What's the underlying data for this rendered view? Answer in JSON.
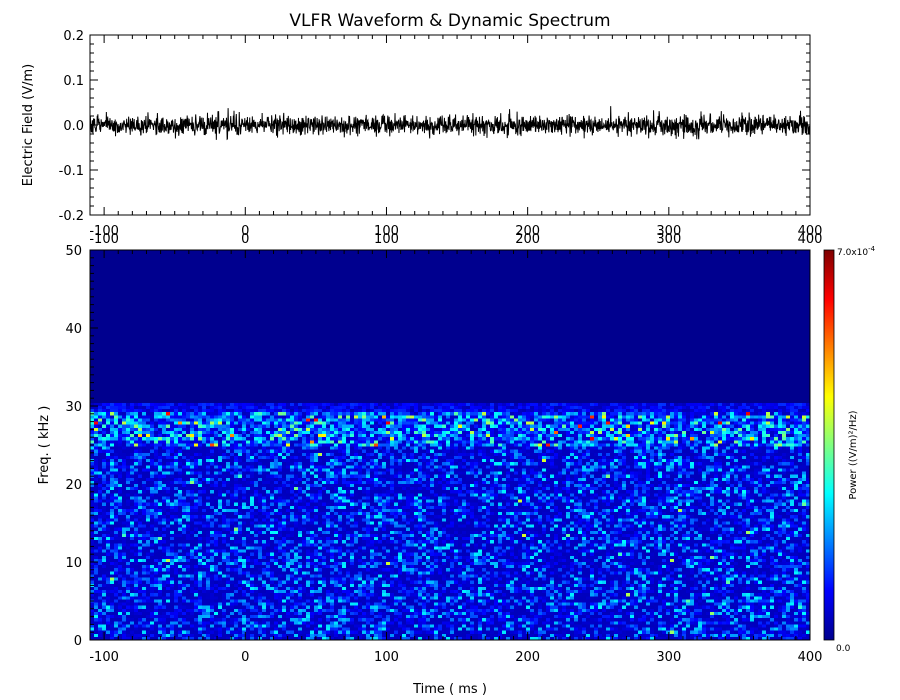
{
  "title": "VLFR Waveform & Dynamic Spectrum",
  "chart_data": [
    {
      "type": "line",
      "panel": "waveform",
      "ylabel": "Electric Field  (V/m)",
      "xlim": [
        -110,
        400
      ],
      "ylim": [
        -0.2,
        0.2
      ],
      "x_ticks": [
        -100,
        0,
        100,
        200,
        300,
        400
      ],
      "y_ticks": [
        -0.2,
        -0.1,
        0.0,
        0.1,
        0.2
      ],
      "y_tick_labels": [
        "-0.2",
        "-0.1",
        "0.0",
        "0.1",
        "0.2"
      ],
      "series": [
        {
          "noise_level": 0.012,
          "peak_amplitude": 0.03
        }
      ],
      "color": "#000000"
    },
    {
      "type": "heatmap",
      "panel": "dynamic-spectrum",
      "xlabel": "Time ( ms )",
      "ylabel": "Freq. ( kHz )",
      "xlim": [
        -110,
        400
      ],
      "ylim": [
        0,
        50
      ],
      "x_ticks": [
        -100,
        0,
        100,
        200,
        300,
        400
      ],
      "y_ticks": [
        0,
        10,
        20,
        30,
        40,
        50
      ],
      "signal_cutoff_khz": 30,
      "enhanced_band_khz": [
        25,
        29
      ],
      "colorbar": {
        "label": "Power  ((V/m)²/Hz)",
        "min_label": "0.0",
        "max_label": "7.0x10",
        "max_exponent": "-4",
        "min": 0,
        "max": 0.0007
      },
      "colormap": [
        "#00008f",
        "#0000ff",
        "#0080ff",
        "#00ffff",
        "#80ff80",
        "#ffff00",
        "#ff8000",
        "#ff0000",
        "#800000"
      ]
    }
  ]
}
